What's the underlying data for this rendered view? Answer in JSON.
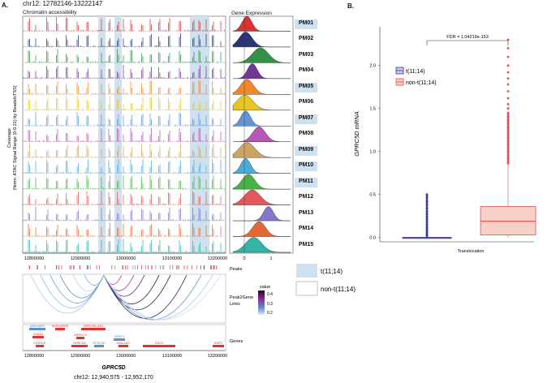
{
  "panel_a": {
    "letter": "A.",
    "region": "chr12: 12782146-13222147",
    "section_title": "Chromatin accessibility",
    "coverage_ylabel_1": "Coverage",
    "coverage_ylabel_2": "(Norm. ATAC Signal Range (0-0.21) by ReadsInTSS)",
    "gene_expr_title": "Gene Expression",
    "samples": [
      "PM01",
      "PM02",
      "PM03",
      "PM04",
      "PM05",
      "PM06",
      "PM07",
      "PM08",
      "PM09",
      "PM10",
      "PM11",
      "PM12",
      "PM13",
      "PM14",
      "PM15"
    ],
    "highlighted_samples": [
      "PM01",
      "PM05",
      "PM07",
      "PM09",
      "PM10",
      "PM11"
    ],
    "legend": {
      "t_label": "t(11;14)",
      "non_t_label": "non-t(11;14)",
      "t_fill": "#cfe0ee"
    },
    "genomic_axis_ticks": [
      "12800000",
      "12900000",
      "13000000",
      "13100000",
      "13200000"
    ],
    "expr_axis_ticks": [
      "0",
      "1"
    ],
    "peaks_label": "Peaks",
    "links_label_1": "Peak2Gene",
    "links_label_2": "Links",
    "value_legend": {
      "title": "value",
      "ticks": [
        "0.4",
        "0.3",
        "0.2"
      ]
    },
    "genes_label": "Genes",
    "gene_names": [
      "ARHGAP9",
      "AES13/PDE",
      "GPRC5D-AS1",
      "CDKN1",
      "CDKN1P",
      "ARRDC4",
      "GPRC5A",
      "GPRC5D",
      "HEBP1",
      "KIAA1467",
      "GSG1",
      "EMP1"
    ],
    "zoom_gene": "GPRC5D",
    "zoom_coords": "chr12: 12,940,575 - 12,952,170",
    "track_colors": [
      "#d62728",
      "#1f2a6e",
      "#2a8a3e",
      "#6a2b8e",
      "#f08020",
      "#e6c21a",
      "#5a8fd0",
      "#b04fb0",
      "#c9a05a",
      "#3fa8d8",
      "#3eae3e",
      "#e25050",
      "#7b70c8",
      "#e0602a",
      "#2ab0a0"
    ]
  },
  "panel_b": {
    "letter": "B.",
    "fdr_text": "FDR = 1.04219e-153",
    "ylabel": "GPRC5D mRNA",
    "xlabel": "Translocation",
    "legend": [
      {
        "label": "t(11;14)",
        "color": "#3b3b8f",
        "fill": "#c9c9ec"
      },
      {
        "label": "non-t(11;14)",
        "color": "#e05050",
        "fill": "#f7d0c8"
      }
    ],
    "y_ticks": [
      "0.0",
      "0.5",
      "1.0",
      "1.5",
      "2.0"
    ]
  },
  "chart_data": [
    {
      "type": "box",
      "title": "",
      "xlabel": "Translocation",
      "ylabel": "GPRC5D mRNA",
      "ylim": [
        -0.05,
        2.45
      ],
      "categories": [
        "t(11;14)",
        "non-t(11;14)"
      ],
      "series": [
        {
          "name": "t(11;14)",
          "q1": 0.0,
          "median": 0.0,
          "q3": 0.0,
          "whisker_low": 0.0,
          "whisker_high": 0.0,
          "outliers": [
            0.02,
            0.04,
            0.06,
            0.08,
            0.1,
            0.12,
            0.15,
            0.18,
            0.21,
            0.24,
            0.27,
            0.3,
            0.34,
            0.38,
            0.42,
            0.47,
            0.5
          ]
        },
        {
          "name": "non-t(11;14)",
          "q1": 0.03,
          "median": 0.19,
          "q3": 0.36,
          "whisker_low": 0.0,
          "whisker_high": 0.85,
          "outliers": [
            0.88,
            0.92,
            0.96,
            1.0,
            1.04,
            1.08,
            1.12,
            1.16,
            1.2,
            1.24,
            1.28,
            1.32,
            1.36,
            1.4,
            1.45,
            1.5,
            1.55,
            1.62,
            1.7,
            1.78,
            1.85,
            1.92,
            2.0,
            2.1,
            2.2,
            2.3
          ]
        }
      ],
      "annotation": "FDR = 1.04219e-153"
    }
  ]
}
